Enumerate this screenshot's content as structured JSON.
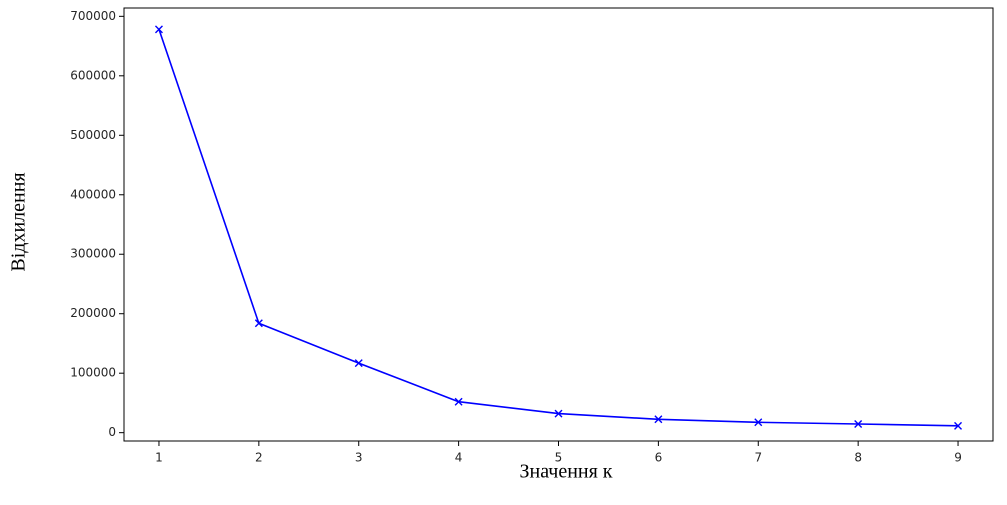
{
  "chart_data": {
    "type": "line",
    "title": "",
    "xlabel": "Значення к",
    "ylabel": "Відхилення",
    "xlim": [
      0.65,
      9.35
    ],
    "ylim": [
      -14000,
      714000
    ],
    "x_ticks": [
      1,
      2,
      3,
      4,
      5,
      6,
      7,
      8,
      9
    ],
    "y_ticks": [
      0,
      100000,
      200000,
      300000,
      400000,
      500000,
      600000,
      700000
    ],
    "grid": false,
    "series": [
      {
        "color": "#0000ff",
        "marker": "x",
        "x": [
          1,
          2,
          3,
          4,
          5,
          6,
          7,
          8,
          9
        ],
        "y": [
          678000,
          184000,
          117000,
          52000,
          32000,
          22500,
          17500,
          14500,
          11500
        ]
      }
    ]
  }
}
